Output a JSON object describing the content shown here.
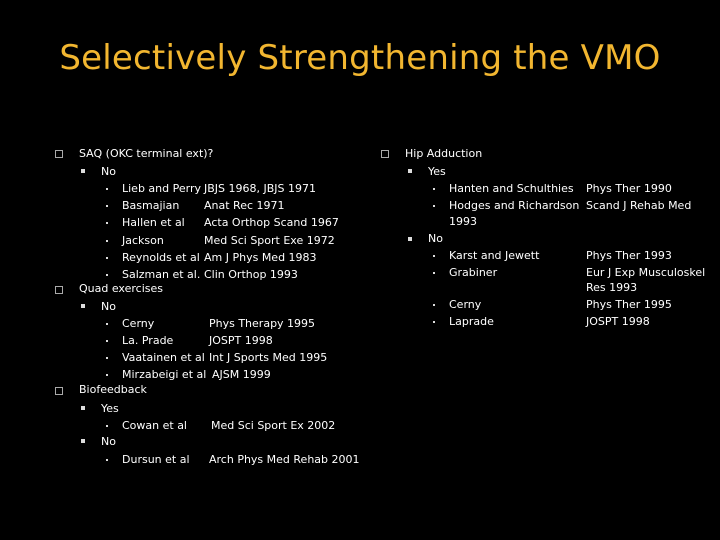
{
  "slide": {
    "title": "Selectively Strengthening the VMO",
    "left": {
      "saq": {
        "heading": "SAQ (OKC terminal ext)?",
        "no_label": "No",
        "items": [
          {
            "author": "Lieb and Perry",
            "ref": "JBJS 1968, JBJS 1971"
          },
          {
            "author": "Basmajian",
            "ref": "Anat Rec 1971"
          },
          {
            "author": "Hallen et al",
            "ref": "Acta Orthop Scand 1967"
          },
          {
            "author": "Jackson",
            "ref": "Med Sci Sport Exe 1972"
          },
          {
            "author": "Reynolds et al",
            "ref": "Am J Phys Med 1983"
          },
          {
            "author": "Salzman et al.",
            "ref": "Clin Orthop 1993"
          }
        ]
      },
      "quad": {
        "heading": "Quad exercises",
        "no_label": "No",
        "items": [
          {
            "author": "Cerny",
            "ref": "Phys Therapy 1995"
          },
          {
            "author": "La. Prade",
            "ref": "JOSPT 1998"
          },
          {
            "author": "Vaatainen et al",
            "ref": "Int J Sports Med 1995"
          },
          {
            "author": "Mirzabeigi et al",
            "ref": "AJSM 1999"
          }
        ]
      },
      "biofeedback": {
        "heading": "Biofeedback",
        "yes_label": "Yes",
        "yes_items": [
          {
            "author": "Cowan et al",
            "ref": "Med Sci Sport Ex 2002"
          }
        ],
        "no_label": "No",
        "no_items": [
          {
            "author": "Dursun et al",
            "ref": "Arch Phys Med Rehab 2001"
          }
        ]
      }
    },
    "right": {
      "heading": "Hip Adduction",
      "yes_label": "Yes",
      "yes_items": [
        {
          "author": "Hanten and Schulthies",
          "ref": "Phys Ther 1990"
        },
        {
          "author": "Hodges and Richardson",
          "author_line2": "1993",
          "ref": "Scand J Rehab Med"
        }
      ],
      "no_label": "No",
      "no_items": [
        {
          "author": "Karst and Jewett",
          "ref": "Phys Ther 1993"
        },
        {
          "author": "Grabiner",
          "ref": "Eur J Exp Musculoskel",
          "ref_line2": "Res 1993"
        },
        {
          "author": "Cerny",
          "ref": "Phys Ther 1995"
        },
        {
          "author": "Laprade",
          "ref": "JOSPT 1998"
        }
      ]
    }
  },
  "colors": {
    "background": "#000000",
    "title": "#f2b630",
    "text": "#ffffff"
  }
}
